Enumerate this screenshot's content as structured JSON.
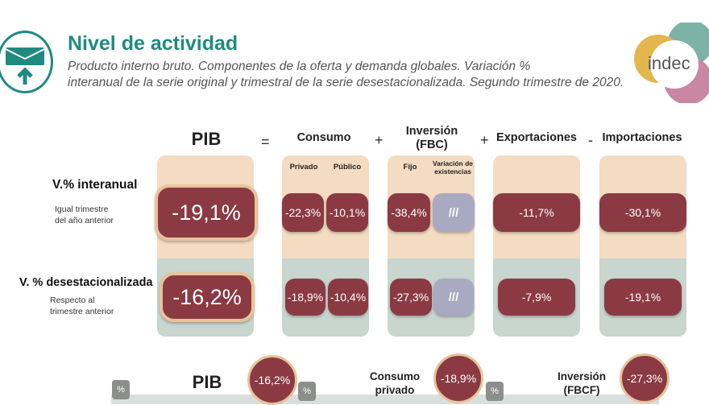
{
  "header": {
    "title": "Nivel de actividad",
    "subtitle_line1": "Producto interno bruto. Componentes de la oferta y demanda globales. Variación %",
    "subtitle_line2": "interanual de la serie original y trimestral de la serie desestacionalizada. Segundo trimestre de 2020.",
    "logo_text": "indec"
  },
  "columns": {
    "pib": "PIB",
    "eq": "=",
    "consumo": "Consumo",
    "plus1": "+",
    "inversion_line1": "Inversión",
    "inversion_line2": "(FBC)",
    "plus2": "+",
    "exportaciones": "Exportaciones",
    "minus": "-",
    "importaciones": "Importaciones",
    "privado": "Privado",
    "publico": "Público",
    "fijo": "Fijo",
    "variacion_line1": "Variación de",
    "variacion_line2": "existencias"
  },
  "rows": {
    "interanual": {
      "label": "V.% interanual",
      "sub1": "Igual trimestre",
      "sub2": "del año anterior",
      "pib": "-19,1%",
      "privado": "-22,3%",
      "publico": "-10,1%",
      "fijo": "-38,4%",
      "variacion": "///",
      "exportaciones": "-11,7%",
      "importaciones": "-30,1%"
    },
    "desest": {
      "label": "V. % desestacionalizada",
      "sub1": "Respecto al",
      "sub2": "trimestre anterior",
      "pib": "-16,2%",
      "privado": "-18,9%",
      "publico": "-10,4%",
      "fijo": "-27,3%",
      "variacion": "///",
      "exportaciones": "-7,9%",
      "importaciones": "-19,1%"
    }
  },
  "bottom": {
    "pct_symbol": "%",
    "pib_label": "PIB",
    "pib_value": "-16,2%",
    "consumo_line1": "Consumo",
    "consumo_line2": "privado",
    "consumo_value": "-18,9%",
    "inversion_line1": "Inversión",
    "inversion_line2": "(FBCF)",
    "inversion_value": "-27,3%"
  },
  "colors": {
    "accent": "#1f8a80",
    "value_pill": "#8b3a44",
    "panel_top": "#f3dcc2",
    "panel_bottom": "#c9d5cf"
  }
}
